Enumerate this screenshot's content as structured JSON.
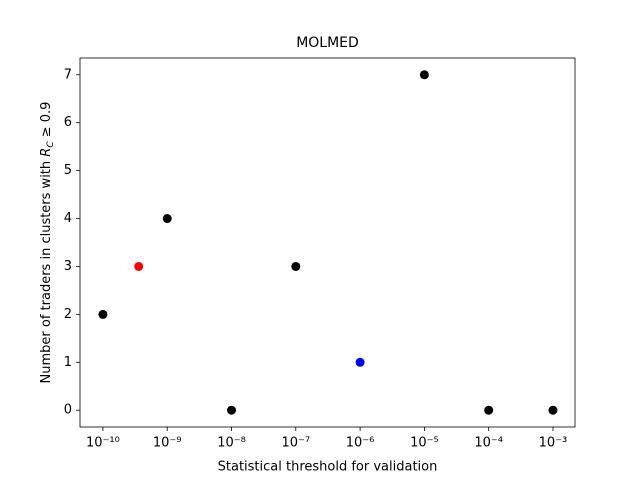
{
  "chart_data": {
    "type": "scatter",
    "title": "MOLMED",
    "xlabel": "Statistical threshold for validation",
    "ylabel": {
      "text": "Number of traders in clusters with ",
      "symbol": "R",
      "subscript": "C",
      "rest": " ≥ 0.9"
    },
    "x": [
      1e-10,
      3.6e-10,
      1e-09,
      1e-08,
      1e-07,
      1e-06,
      1e-05,
      0.0001,
      0.001
    ],
    "values": [
      2,
      3,
      4,
      0,
      3,
      1,
      7,
      0,
      0
    ],
    "colors": [
      "#000000",
      "#ff0000",
      "#000000",
      "#000000",
      "#000000",
      "#0000ff",
      "#000000",
      "#000000",
      "#000000"
    ],
    "xscale": "log",
    "xlim": [
      4.4e-11,
      0.0022
    ],
    "ylim": [
      -0.35,
      7.35
    ],
    "xticks": [
      {
        "value": 1e-10,
        "label": "10⁻¹⁰"
      },
      {
        "value": 1e-09,
        "label": "10⁻⁹"
      },
      {
        "value": 1e-08,
        "label": "10⁻⁸"
      },
      {
        "value": 1e-07,
        "label": "10⁻⁷"
      },
      {
        "value": 1e-06,
        "label": "10⁻⁶"
      },
      {
        "value": 1e-05,
        "label": "10⁻⁵"
      },
      {
        "value": 0.0001,
        "label": "10⁻⁴"
      },
      {
        "value": 0.001,
        "label": "10⁻³"
      }
    ],
    "yticks": [
      0,
      1,
      2,
      3,
      4,
      5,
      6,
      7
    ],
    "grid": false
  }
}
